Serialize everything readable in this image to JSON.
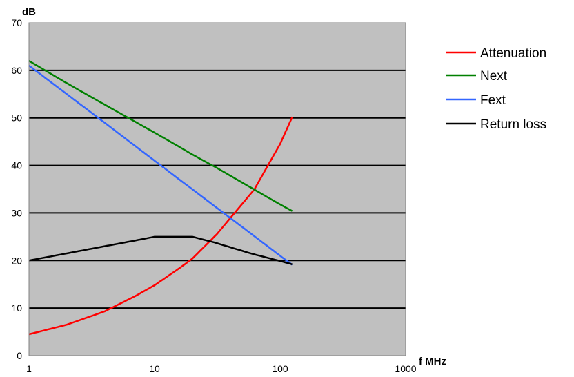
{
  "chart_data": {
    "type": "line",
    "title": "",
    "xlabel": "f MHz",
    "ylabel": "dB",
    "x_scale": "log",
    "xlim": [
      1,
      1000
    ],
    "ylim": [
      0,
      70
    ],
    "x_ticks": [
      1,
      10,
      100,
      1000
    ],
    "y_ticks": [
      0,
      10,
      20,
      30,
      40,
      50,
      60,
      70
    ],
    "grid": "horizontal",
    "legend_position": "right",
    "plot_background": "#c0c0c0",
    "series": [
      {
        "name": "Attenuation",
        "color": "#ff0000",
        "x": [
          1,
          2,
          4,
          7,
          10,
          16,
          20,
          31.25,
          62.5,
          100,
          125
        ],
        "y": [
          4.5,
          6.5,
          9.3,
          12.5,
          14.8,
          18.5,
          20.4,
          25.5,
          35,
          44.5,
          50.2
        ]
      },
      {
        "name": "Next",
        "color": "#008000",
        "x": [
          1,
          2,
          4,
          7,
          10,
          16,
          20,
          31.25,
          62.5,
          100,
          125
        ],
        "y": [
          62,
          57.3,
          52.8,
          49.2,
          46.9,
          43.8,
          42.3,
          39.5,
          34.9,
          31.8,
          30.4
        ]
      },
      {
        "name": "Fext",
        "color": "#3366ff",
        "x": [
          1,
          2,
          4,
          7,
          10,
          16,
          20,
          31.25,
          62.5,
          100,
          125
        ],
        "y": [
          61,
          55,
          49,
          44.1,
          41,
          36.9,
          35,
          31.1,
          25.1,
          21,
          19.1
        ]
      },
      {
        "name": "Return loss",
        "color": "#000000",
        "x": [
          1,
          2,
          4,
          7,
          10,
          20,
          30,
          60,
          100,
          125
        ],
        "y": [
          20,
          21.5,
          23,
          24.2,
          25,
          25,
          23.8,
          21.4,
          19.9,
          19.2
        ]
      }
    ]
  }
}
